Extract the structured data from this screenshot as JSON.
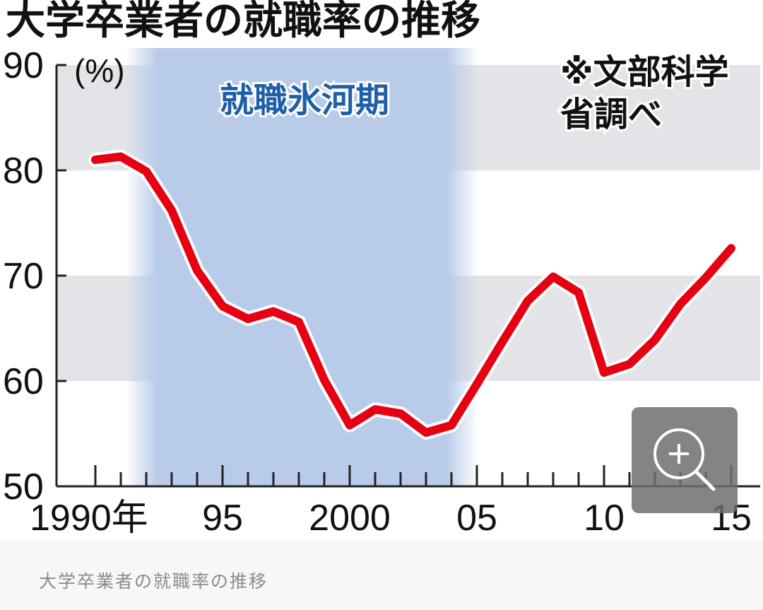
{
  "chart_data": {
    "type": "line",
    "title": "大学卒業者の就職率の推移",
    "ylabel": "(%)",
    "source_note": [
      "※文部科学",
      "省調べ"
    ],
    "shaded_region": {
      "label": "就職氷河期",
      "x_start": 1993,
      "x_end": 2005
    },
    "xlim": [
      1989,
      2015.8
    ],
    "ylim": [
      50,
      90
    ],
    "yticks": [
      50,
      60,
      70,
      80,
      90
    ],
    "xticks": [
      {
        "value": 1990,
        "label": "1990年"
      },
      {
        "value": 1995,
        "label": "95"
      },
      {
        "value": 2000,
        "label": "2000"
      },
      {
        "value": 2005,
        "label": "05"
      },
      {
        "value": 2010,
        "label": "10"
      },
      {
        "value": 2015,
        "label": "15"
      }
    ],
    "grid_bands": [
      [
        80,
        90
      ],
      [
        60,
        70
      ]
    ],
    "series": [
      {
        "x": [
          1990,
          1991,
          1992,
          1993,
          1994,
          1995,
          1996,
          1997,
          1998,
          1999,
          2000,
          2001,
          2002,
          2003,
          2004,
          2005,
          2006,
          2007,
          2008,
          2009,
          2010,
          2011,
          2012,
          2013,
          2014,
          2015
        ],
        "values": [
          81.0,
          81.3,
          79.9,
          76.2,
          70.5,
          67.1,
          65.9,
          66.6,
          65.6,
          60.1,
          55.8,
          57.3,
          56.9,
          55.1,
          55.8,
          59.7,
          63.7,
          67.6,
          69.9,
          68.4,
          60.8,
          61.6,
          63.9,
          67.3,
          69.8,
          72.6
        ],
        "color": "#e60012"
      }
    ]
  },
  "colors": {
    "band": "#e3e4e8",
    "shade": "#b8cbe8",
    "shade_label": "#1f5fa8",
    "line": "#e60012",
    "axis": "#222222"
  },
  "caption": "大学卒業者の就職率の推移",
  "icons": {
    "zoom": "zoom-in-icon"
  }
}
